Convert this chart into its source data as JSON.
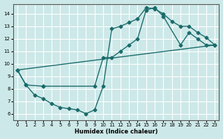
{
  "xlabel": "Humidex (Indice chaleur)",
  "ylabel": "",
  "background_color": "#cde8e8",
  "line_color": "#1a6b6b",
  "grid_color": "#ffffff",
  "xlim": [
    -0.5,
    23.5
  ],
  "ylim": [
    5.5,
    14.8
  ],
  "xticks": [
    0,
    1,
    2,
    3,
    4,
    5,
    6,
    7,
    8,
    9,
    10,
    11,
    12,
    13,
    14,
    15,
    16,
    17,
    18,
    19,
    20,
    21,
    22,
    23
  ],
  "yticks": [
    6,
    7,
    8,
    9,
    10,
    11,
    12,
    13,
    14
  ],
  "curve1_x": [
    0,
    1,
    2,
    3,
    4,
    5,
    6,
    7,
    8,
    9,
    10,
    11,
    12,
    13,
    14,
    15,
    16,
    17,
    18,
    19,
    20,
    21,
    22,
    23
  ],
  "curve1_y": [
    9.5,
    8.3,
    7.5,
    7.2,
    6.8,
    6.5,
    6.4,
    6.3,
    6.0,
    6.3,
    8.2,
    12.8,
    13.0,
    13.3,
    13.6,
    14.5,
    14.4,
    14.0,
    13.4,
    13.0,
    13.0,
    12.5,
    12.1,
    11.5
  ],
  "curve2_x": [
    0,
    1,
    3,
    3,
    9,
    10,
    11,
    12,
    13,
    14,
    15,
    16,
    17,
    19,
    20,
    21,
    22,
    23
  ],
  "curve2_y": [
    9.5,
    8.3,
    8.2,
    8.2,
    8.2,
    10.5,
    10.5,
    11.0,
    11.5,
    12.0,
    14.3,
    14.5,
    13.8,
    11.5,
    12.5,
    12.0,
    11.5,
    11.5
  ],
  "curve3_x": [
    0,
    23
  ],
  "curve3_y": [
    9.5,
    11.5
  ],
  "marker": "D",
  "markersize": 2.5,
  "linewidth": 1.0
}
